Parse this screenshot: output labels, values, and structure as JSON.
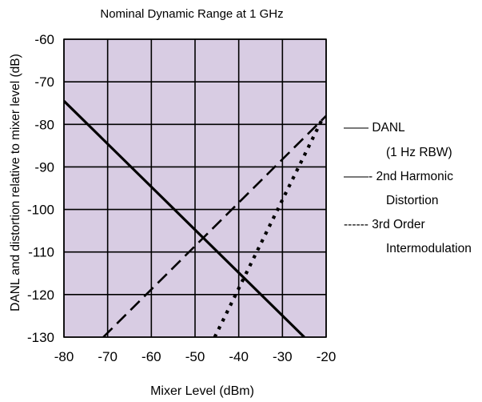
{
  "chart_data": {
    "type": "line",
    "title": "Nominal Dynamic Range at 1 GHz",
    "xlabel": "Mixer Level (dBm)",
    "ylabel": "DANL and distortion relative to mixer level (dB)",
    "xlim": [
      -80,
      -20
    ],
    "ylim": [
      -130,
      -60
    ],
    "xticks": [
      -80,
      -70,
      -60,
      -50,
      -40,
      -30,
      -20
    ],
    "yticks": [
      -60,
      -70,
      -80,
      -90,
      -100,
      -110,
      -120,
      -130
    ],
    "grid": true,
    "plot_background": "#d8cce3",
    "legend_position": "right",
    "series": [
      {
        "name": "DANL",
        "name_line2": "(1 Hz RBW)",
        "legend_prefix": "——",
        "style": "solid",
        "x": [
          -80,
          -25
        ],
        "y": [
          -74.5,
          -130
        ]
      },
      {
        "name": "2nd Harmonic",
        "name_line2": "Distortion",
        "legend_prefix": "——-",
        "style": "dashed",
        "x": [
          -71,
          -20
        ],
        "y": [
          -130,
          -78
        ]
      },
      {
        "name": "3rd Order",
        "name_line2": "Intermodulation",
        "legend_prefix": "------",
        "style": "dotted",
        "x": [
          -45.5,
          -21
        ],
        "y": [
          -130,
          -79
        ]
      }
    ]
  }
}
